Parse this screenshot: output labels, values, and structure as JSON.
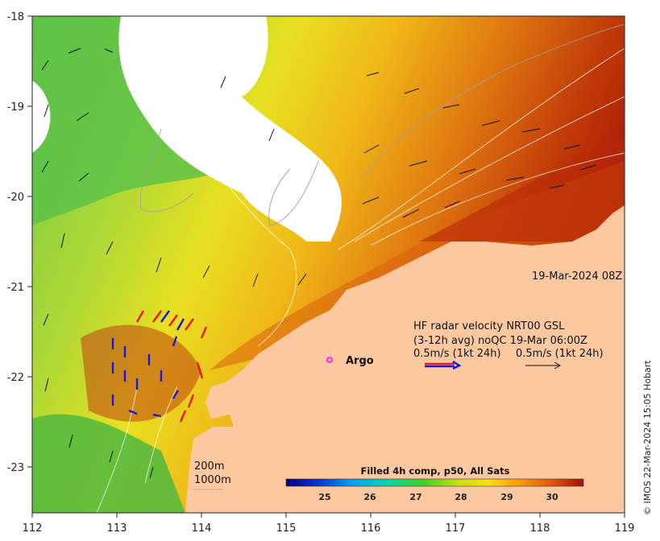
{
  "map": {
    "lon_ticks": [
      "112",
      "113",
      "114",
      "115",
      "116",
      "117",
      "118",
      "119"
    ],
    "lat_ticks": [
      "-18",
      "-19",
      "-20",
      "-21",
      "-22",
      "-23"
    ],
    "timestamp": "19-Mar-2024 08Z",
    "radar_title": "HF radar velocity  NRT00 GSL",
    "radar_subtitle": "(3-12h avg) noQC 19-Mar 06:00Z",
    "scale_left": "0.5m/s (1kt 24h)",
    "scale_right": "0.5m/s (1kt 24h)",
    "argo_label": "Argo",
    "isobath_200": "200m",
    "isobath_1000": "1000m",
    "colorbar_title": "Filled 4h comp, p50, All Sats",
    "colorbar_ticks": [
      "25",
      "26",
      "27",
      "28",
      "29",
      "30"
    ],
    "credit": "© IMOS 22-Mar-2024 15:05 Hobart",
    "colors": {
      "land": "#fcc8a0",
      "radar_red": "#e81818",
      "radar_blue": "#1818d8",
      "argo_marker": "#ff00ff"
    }
  }
}
